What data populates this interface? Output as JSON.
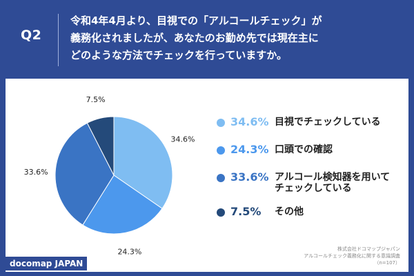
{
  "header": {
    "q_label": "Q2",
    "question": "令和4年4月より、目視での「アルコールチェック」が\n義務化されましたが、あなたのお勤め先では現在主に\nどのような方法でチェックを行っていますか。"
  },
  "chart_data": {
    "type": "pie",
    "categories": [
      "目視でチェックしている",
      "口頭での確認",
      "アルコール検知器を用いて\nチェックしている",
      "その他"
    ],
    "values": [
      34.6,
      24.3,
      33.6,
      7.5
    ],
    "value_labels": [
      "34.6%",
      "24.3%",
      "33.6%",
      "7.5%"
    ],
    "colors": [
      "#7fbdf2",
      "#4c98ed",
      "#3a74c4",
      "#244a7a"
    ],
    "legend_placement": "right"
  },
  "source": {
    "text": "株式会社ドコマップジャパン\nアルコールチェック義務化に関する意識調査\n（n=107）"
  },
  "brand": "docomap JAPAN"
}
